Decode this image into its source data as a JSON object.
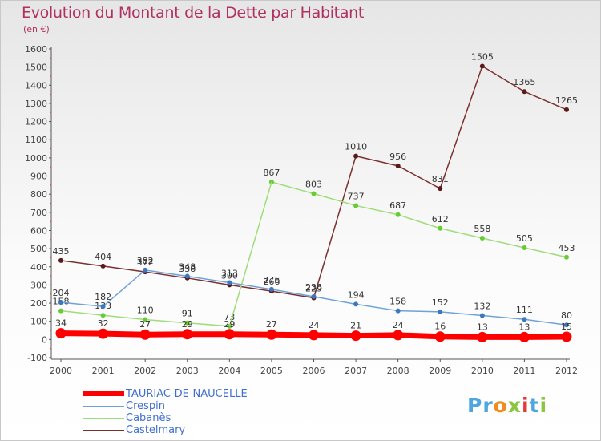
{
  "title": "Evolution du Montant de la Dette par Habitant",
  "subtitle": "(en €)",
  "brand": {
    "text": "Proxiti",
    "letter_colors": [
      "#4da6e0",
      "#4da6e0",
      "#f08c1e",
      "#8cc63f",
      "#e23b3b",
      "#4da6e0",
      "#8cc63f"
    ]
  },
  "chart_data": {
    "type": "line",
    "x": [
      "2000",
      "2001",
      "2002",
      "2003",
      "2004",
      "2005",
      "2006",
      "2007",
      "2008",
      "2009",
      "2010",
      "2011",
      "2012"
    ],
    "ylim": [
      -100,
      1600
    ],
    "yticks": [
      -100,
      0,
      100,
      200,
      300,
      400,
      500,
      600,
      700,
      800,
      900,
      1000,
      1100,
      1200,
      1300,
      1400,
      1500,
      1600
    ],
    "grid": false,
    "legend_position": "bottom-left",
    "series": [
      {
        "name": "TAURIAC-DE-NAUCELLE",
        "color": "#ff0000",
        "marker_color": "#ff0000",
        "bold": true,
        "values": [
          34,
          32,
          27,
          29,
          29,
          27,
          24,
          21,
          24,
          16,
          13,
          13,
          15
        ]
      },
      {
        "name": "Crespin",
        "color": "#6fa3d8",
        "marker_color": "#3b78c0",
        "bold": false,
        "values": [
          204,
          182,
          382,
          348,
          313,
          276,
          236,
          194,
          158,
          152,
          132,
          111,
          80
        ]
      },
      {
        "name": "Cabanès",
        "color": "#9fdc7a",
        "marker_color": "#66cc33",
        "bold": false,
        "values": [
          158,
          133,
          110,
          91,
          73,
          null,
          null,
          null,
          null,
          null,
          null,
          null,
          null
        ],
        "values_late": [
          null,
          null,
          null,
          null,
          null,
          867,
          803,
          737,
          687,
          612,
          558,
          505,
          453
        ],
        "note_rise": [
          null,
          null,
          null,
          null,
          73,
          867
        ]
      },
      {
        "name": "Castelmary",
        "color": "#7b2f2f",
        "marker_color": "#5a1a1a",
        "bold": false,
        "values": [
          435,
          404,
          372,
          338,
          300,
          266,
          229,
          1010,
          956,
          831,
          1505,
          1365,
          1265
        ]
      }
    ]
  }
}
